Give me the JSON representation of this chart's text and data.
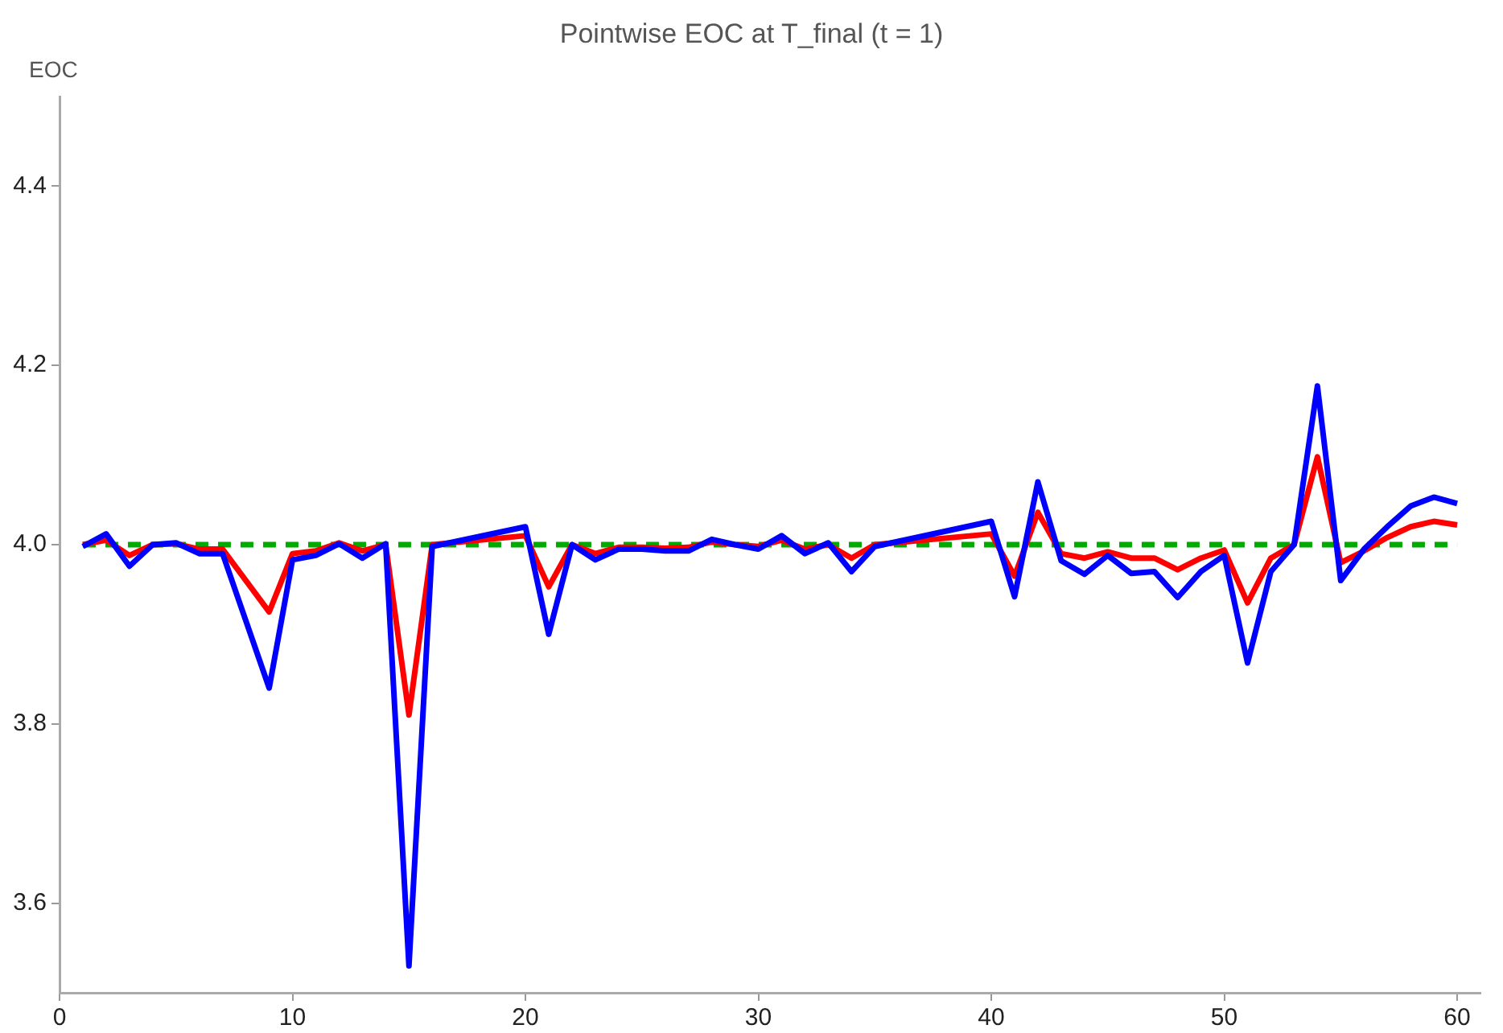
{
  "chart_data": {
    "type": "line",
    "title": "Pointwise EOC at T_final (t = 1)",
    "ylabel": "EOC",
    "x": [
      1,
      2,
      3,
      4,
      5,
      6,
      7,
      9,
      10,
      11,
      12,
      13,
      14,
      15,
      16,
      20,
      21,
      22,
      23,
      24,
      25,
      26,
      27,
      28,
      29,
      30,
      31,
      32,
      33,
      34,
      35,
      40,
      41,
      42,
      43,
      44,
      45,
      46,
      47,
      48,
      49,
      50,
      51,
      52,
      53,
      54,
      55,
      56,
      57,
      58,
      59,
      60
    ],
    "series": [
      {
        "color": "#0000ff",
        "values": [
          3.998,
          4.012,
          3.976,
          4.0,
          4.002,
          3.99,
          3.99,
          3.84,
          3.983,
          3.988,
          4.001,
          3.985,
          4.001,
          3.53,
          3.998,
          4.02,
          3.9,
          4.0,
          3.983,
          3.995,
          3.995,
          3.993,
          3.993,
          4.006,
          4.0,
          3.995,
          4.01,
          3.99,
          4.002,
          3.97,
          3.998,
          4.026,
          3.942,
          4.07,
          3.982,
          3.967,
          3.988,
          3.968,
          3.97,
          3.941,
          3.97,
          3.988,
          3.868,
          3.97,
          4.0,
          4.177,
          3.96,
          3.995,
          4.02,
          4.043,
          4.053,
          4.046
        ]
      },
      {
        "color": "#ff0000",
        "values": [
          4.0,
          4.005,
          3.988,
          4.0,
          4.001,
          3.995,
          3.995,
          3.925,
          3.99,
          3.993,
          4.002,
          3.993,
          4.0,
          3.81,
          4.0,
          4.01,
          3.953,
          4.0,
          3.99,
          3.997,
          3.997,
          3.996,
          3.997,
          4.003,
          4.0,
          3.998,
          4.005,
          3.995,
          4.0,
          3.985,
          4.0,
          4.012,
          3.965,
          4.036,
          3.99,
          3.985,
          3.992,
          3.985,
          3.985,
          3.972,
          3.985,
          3.994,
          3.935,
          3.985,
          4.0,
          4.098,
          3.98,
          3.993,
          4.008,
          4.02,
          4.026,
          4.022
        ]
      }
    ],
    "xlim": [
      0,
      61
    ],
    "xticks": [
      0,
      10,
      20,
      30,
      40,
      50,
      60
    ],
    "ylim": [
      3.5,
      4.5
    ],
    "yticks": [
      {
        "value": 3.6,
        "label": "3.6"
      },
      {
        "value": 3.8,
        "label": "3.8"
      },
      {
        "value": 4,
        "label": "4.0"
      },
      {
        "value": 4.2,
        "label": "4.2"
      },
      {
        "value": 4.4,
        "label": "4.4"
      }
    ],
    "ref_lines": [
      {
        "axis": "y",
        "value": 4,
        "color": "#00aa00",
        "line_style": "dashed"
      }
    ],
    "grid": false,
    "legend": false,
    "marker": "none",
    "line_style": "solid"
  }
}
